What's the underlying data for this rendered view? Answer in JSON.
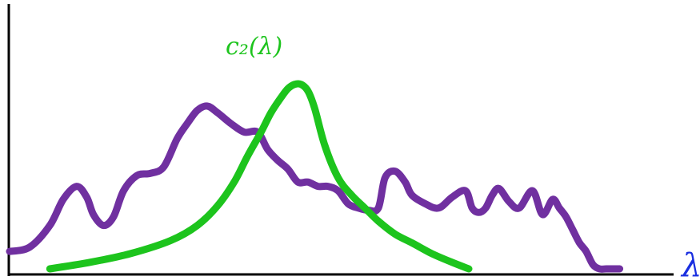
{
  "chart_data": {
    "type": "line",
    "title": "",
    "xlabel": "λ",
    "ylabel": "",
    "grid": false,
    "legend": "none",
    "xlim": [
      0,
      1
    ],
    "ylim": [
      0,
      1
    ],
    "series": [
      {
        "color": "#7030a0",
        "x": [
          0.0,
          0.03,
          0.06,
          0.08,
          0.1,
          0.115,
          0.125,
          0.14,
          0.155,
          0.17,
          0.19,
          0.21,
          0.23,
          0.25,
          0.265,
          0.28,
          0.295,
          0.31,
          0.33,
          0.35,
          0.37,
          0.385,
          0.4,
          0.415,
          0.43,
          0.445,
          0.46,
          0.475,
          0.49,
          0.505,
          0.52,
          0.535,
          0.55,
          0.56,
          0.575,
          0.59,
          0.6,
          0.62,
          0.64,
          0.66,
          0.68,
          0.69,
          0.7,
          0.71,
          0.72,
          0.73,
          0.745,
          0.76,
          0.78,
          0.795,
          0.81,
          0.82,
          0.83,
          0.84,
          0.85,
          0.86,
          0.87,
          0.88,
          0.89,
          0.9,
          0.91
        ],
        "y": [
          0.08,
          0.1,
          0.2,
          0.32,
          0.38,
          0.33,
          0.25,
          0.2,
          0.24,
          0.36,
          0.43,
          0.44,
          0.47,
          0.6,
          0.67,
          0.73,
          0.75,
          0.72,
          0.67,
          0.63,
          0.63,
          0.55,
          0.5,
          0.46,
          0.4,
          0.4,
          0.38,
          0.38,
          0.36,
          0.3,
          0.28,
          0.27,
          0.28,
          0.42,
          0.45,
          0.4,
          0.34,
          0.3,
          0.28,
          0.33,
          0.36,
          0.28,
          0.26,
          0.28,
          0.34,
          0.37,
          0.31,
          0.28,
          0.36,
          0.25,
          0.32,
          0.28,
          0.24,
          0.18,
          0.12,
          0.08,
          0.02,
          0.0,
          0.0,
          0.0,
          0.0
        ]
      },
      {
        "name": "c₂(λ)",
        "color": "#1dc41d",
        "x": [
          0.06,
          0.12,
          0.18,
          0.24,
          0.28,
          0.31,
          0.335,
          0.355,
          0.375,
          0.39,
          0.405,
          0.415,
          0.425,
          0.435,
          0.445,
          0.455,
          0.47,
          0.49,
          0.51,
          0.53,
          0.55,
          0.575,
          0.6,
          0.63,
          0.66,
          0.685
        ],
        "y": [
          0.0,
          0.03,
          0.07,
          0.13,
          0.2,
          0.29,
          0.4,
          0.52,
          0.63,
          0.72,
          0.79,
          0.83,
          0.85,
          0.85,
          0.82,
          0.74,
          0.57,
          0.42,
          0.34,
          0.28,
          0.22,
          0.16,
          0.12,
          0.07,
          0.03,
          0.0
        ]
      }
    ],
    "annotations": [
      {
        "text": "c₂(λ)",
        "series": 1
      }
    ]
  }
}
